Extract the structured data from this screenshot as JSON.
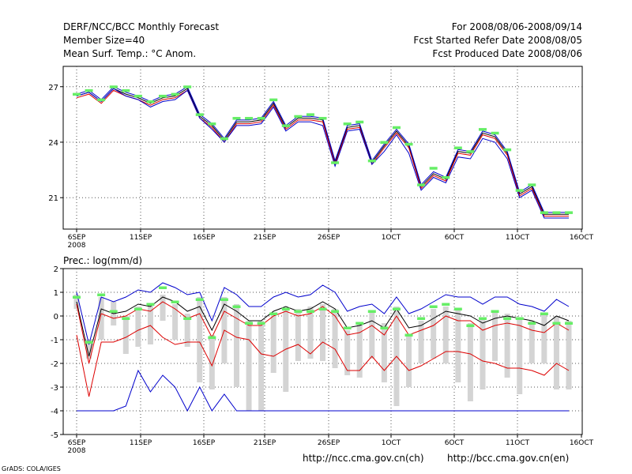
{
  "header": {
    "title": "DERF/NCC/BCC Monthly Forecast",
    "member_size": "Member Size=40",
    "variable": "Mean Surf. Temp.: °C Anom.",
    "period": "For 2008/08/06-2008/09/14",
    "refer_date": "Fcst Started Refer Date 2008/08/05",
    "produced_date": "Fcst Produced Date 2008/08/06"
  },
  "footer": {
    "link_ch": "http://ncc.cma.gov.cn(ch)",
    "link_en": "http://bcc.cma.gov.cn(en)",
    "software": "GrADS: COLA/IGES"
  },
  "colors": {
    "median": "#000000",
    "upper": "#0000cc",
    "lower": "#dd0000",
    "obs_marker": "#66ee66",
    "box": "#d4d4d4"
  },
  "chart_data": [
    {
      "type": "line",
      "title": "Mean Surf. Temp.: °C Anom.",
      "xlabel": "",
      "ylabel": "",
      "ylim": [
        19.3,
        28.1
      ],
      "yticks": [
        21,
        24,
        27
      ],
      "x_tick_labels": [
        "6SEP",
        "11SEP",
        "16SEP",
        "21SEP",
        "26SEP",
        "1OCT",
        "6OCT",
        "11OCT",
        "16OCT"
      ],
      "x_tick_year": "2008",
      "grid": true,
      "n_days": 41,
      "x_range": [
        0,
        40
      ],
      "series": [
        {
          "name": "median",
          "color": "#000000",
          "values": [
            26.5,
            26.7,
            26.2,
            26.9,
            26.6,
            26.4,
            26.1,
            26.4,
            26.5,
            26.9,
            25.4,
            24.9,
            24.1,
            25.1,
            25.1,
            25.2,
            26.1,
            24.8,
            25.3,
            25.3,
            25.2,
            22.9,
            24.8,
            24.9,
            22.9,
            23.8,
            24.6,
            23.8,
            21.6,
            22.3,
            22.0,
            23.5,
            23.4,
            24.5,
            24.3,
            23.4,
            21.2,
            21.6,
            20.1,
            20.1,
            20.1
          ]
        },
        {
          "name": "upper",
          "color": "#0000cc",
          "values": [
            26.6,
            26.8,
            26.3,
            27.0,
            26.7,
            26.5,
            26.2,
            26.5,
            26.6,
            27.0,
            25.5,
            25.0,
            24.2,
            25.2,
            25.2,
            25.3,
            26.2,
            24.9,
            25.4,
            25.4,
            25.3,
            23.0,
            24.9,
            25.0,
            23.0,
            23.9,
            24.7,
            23.9,
            21.7,
            22.4,
            22.1,
            23.6,
            23.5,
            24.6,
            24.4,
            23.5,
            21.3,
            21.7,
            20.2,
            20.2,
            20.2
          ]
        },
        {
          "name": "lower",
          "color": "#dd0000",
          "values": [
            26.4,
            26.6,
            26.1,
            26.8,
            26.5,
            26.3,
            26.0,
            26.3,
            26.4,
            26.8,
            25.3,
            24.8,
            24.0,
            25.0,
            25.0,
            25.1,
            26.0,
            24.7,
            25.2,
            25.2,
            25.1,
            22.8,
            24.7,
            24.8,
            22.8,
            23.7,
            24.5,
            23.7,
            21.5,
            22.2,
            21.9,
            23.4,
            23.3,
            24.4,
            24.2,
            23.3,
            21.1,
            21.5,
            20.0,
            20.0,
            20.0
          ]
        },
        {
          "name": "lowest",
          "color": "#0000cc",
          "values": [
            26.5,
            26.7,
            26.2,
            26.9,
            26.5,
            26.3,
            25.9,
            26.2,
            26.3,
            26.8,
            25.3,
            24.7,
            24.0,
            24.9,
            24.9,
            25.0,
            25.9,
            24.6,
            25.1,
            25.1,
            24.9,
            22.7,
            24.6,
            24.7,
            22.8,
            23.5,
            24.4,
            23.4,
            21.4,
            22.1,
            21.8,
            23.2,
            23.1,
            24.2,
            24.0,
            23.1,
            21.0,
            21.4,
            19.9,
            19.9,
            19.9
          ]
        }
      ],
      "obs_markers": [
        26.6,
        26.8,
        26.3,
        27.0,
        26.8,
        26.5,
        26.2,
        26.5,
        26.6,
        27.0,
        25.5,
        25.0,
        24.2,
        25.3,
        25.3,
        25.3,
        26.3,
        24.9,
        25.4,
        25.5,
        25.3,
        22.9,
        25.0,
        25.1,
        23.0,
        24.0,
        24.8,
        23.9,
        21.7,
        22.6,
        22.1,
        23.7,
        23.5,
        24.7,
        24.5,
        23.6,
        21.4,
        21.7,
        20.2,
        20.2,
        20.2
      ]
    },
    {
      "type": "box",
      "title": "Prec.: log(mm/d)",
      "xlabel": "",
      "ylabel": "",
      "ylim": [
        -5,
        2
      ],
      "yticks": [
        -5,
        -4,
        -3,
        -2,
        -1,
        0,
        1,
        2
      ],
      "x_tick_labels": [
        "6SEP",
        "11SEP",
        "16SEP",
        "21SEP",
        "26SEP",
        "1OCT",
        "6OCT",
        "11OCT",
        "16OCT"
      ],
      "x_tick_year": "2008",
      "grid": true,
      "n_days": 41,
      "x_range": [
        0,
        40
      ],
      "boxes": [
        [
          0.9,
          0.3
        ],
        [
          -1.0,
          -1.8
        ],
        [
          0.8,
          -1.0
        ],
        [
          0.6,
          -0.4
        ],
        [
          0.0,
          -1.6
        ],
        [
          0.4,
          -1.3
        ],
        [
          0.5,
          -1.2
        ],
        [
          0.9,
          -0.2
        ],
        [
          0.5,
          -1.0
        ],
        [
          0.1,
          -1.3
        ],
        [
          0.8,
          -2.8
        ],
        [
          -0.8,
          -3.1
        ],
        [
          0.8,
          -2.0
        ],
        [
          0.5,
          -3.0
        ],
        [
          -0.2,
          -4.0
        ],
        [
          -0.2,
          -4.0
        ],
        [
          0.1,
          -2.4
        ],
        [
          0.3,
          -3.2
        ],
        [
          0.3,
          -1.9
        ],
        [
          0.4,
          -1.8
        ],
        [
          0.5,
          -1.9
        ],
        [
          0.3,
          -2.2
        ],
        [
          -0.6,
          -2.5
        ],
        [
          -0.3,
          -2.6
        ],
        [
          0.2,
          -1.8
        ],
        [
          -0.3,
          -2.8
        ],
        [
          0.4,
          -3.8
        ],
        [
          -0.8,
          -3.0
        ],
        [
          -0.2,
          -2.0
        ],
        [
          0.3,
          -1.8
        ],
        [
          0.4,
          -2.0
        ],
        [
          0.3,
          -2.8
        ],
        [
          -0.3,
          -3.6
        ],
        [
          -0.1,
          -3.1
        ],
        [
          0.2,
          -1.9
        ],
        [
          0.1,
          -2.6
        ],
        [
          -0.1,
          -3.3
        ],
        [
          -0.2,
          -2.0
        ],
        [
          0.1,
          -2.0
        ],
        [
          0.0,
          -3.1
        ],
        [
          -0.2,
          -3.1
        ]
      ],
      "series": [
        {
          "name": "median",
          "color": "#000000",
          "values": [
            0.6,
            -1.7,
            0.3,
            0.1,
            0.2,
            0.5,
            0.4,
            0.8,
            0.6,
            0.2,
            0.4,
            -0.6,
            0.5,
            0.2,
            -0.2,
            -0.2,
            0.2,
            0.4,
            0.2,
            0.3,
            0.6,
            0.3,
            -0.5,
            -0.4,
            -0.2,
            -0.5,
            0.3,
            -0.5,
            -0.4,
            -0.1,
            0.2,
            0.1,
            0.0,
            -0.3,
            -0.1,
            0.0,
            -0.1,
            -0.2,
            -0.4,
            0.0,
            -0.2
          ]
        },
        {
          "name": "upper",
          "color": "#0000cc",
          "values": [
            1.0,
            -1.2,
            0.8,
            0.6,
            0.8,
            1.1,
            1.0,
            1.4,
            1.2,
            0.9,
            1.0,
            -0.2,
            1.2,
            0.9,
            0.4,
            0.4,
            0.8,
            1.0,
            0.8,
            0.9,
            1.3,
            1.0,
            0.2,
            0.4,
            0.5,
            0.1,
            0.8,
            0.1,
            0.3,
            0.6,
            0.9,
            0.8,
            0.8,
            0.5,
            0.8,
            0.8,
            0.5,
            0.4,
            0.2,
            0.7,
            0.4
          ]
        },
        {
          "name": "lower-mid",
          "color": "#dd0000",
          "values": [
            0.5,
            -2.0,
            0.1,
            -0.1,
            0.0,
            0.3,
            0.2,
            0.6,
            0.3,
            -0.1,
            0.1,
            -0.9,
            0.2,
            -0.1,
            -0.4,
            -0.4,
            0.0,
            0.2,
            0.0,
            0.1,
            0.4,
            0.0,
            -0.8,
            -0.7,
            -0.4,
            -0.8,
            0.0,
            -0.8,
            -0.6,
            -0.4,
            0.0,
            -0.2,
            -0.2,
            -0.6,
            -0.4,
            -0.3,
            -0.4,
            -0.6,
            -0.7,
            -0.3,
            -0.6
          ]
        },
        {
          "name": "lower",
          "color": "#dd0000",
          "values": [
            -0.8,
            -3.4,
            -1.1,
            -1.1,
            -0.9,
            -0.6,
            -0.4,
            -0.9,
            -1.2,
            -1.1,
            -1.1,
            -2.1,
            -0.6,
            -0.9,
            -1.0,
            -1.6,
            -1.7,
            -1.4,
            -1.2,
            -1.6,
            -1.1,
            -1.4,
            -2.3,
            -2.3,
            -1.7,
            -2.3,
            -1.7,
            -2.3,
            -2.1,
            -1.8,
            -1.5,
            -1.5,
            -1.6,
            -1.9,
            -2.0,
            -2.2,
            -2.2,
            -2.3,
            -2.5,
            -2.0,
            -2.3
          ]
        },
        {
          "name": "lowest",
          "color": "#0000cc",
          "values": [
            -4.0,
            -4.0,
            -4.0,
            -4.0,
            -3.8,
            -2.3,
            -3.2,
            -2.5,
            -3.0,
            -4.0,
            -3.0,
            -4.0,
            -3.3,
            -4.0,
            -4.0,
            -4.0,
            -4.0,
            -4.0,
            -4.0,
            -4.0,
            -4.0,
            -4.0,
            -4.0,
            -4.0,
            -4.0,
            -4.0,
            -4.0,
            -4.0,
            -4.0,
            -4.0,
            -4.0,
            -4.0,
            -4.0,
            -4.0,
            -4.0,
            -4.0,
            -4.0,
            -4.0,
            -4.0,
            -4.0,
            -4.0
          ]
        }
      ],
      "obs_markers": [
        0.8,
        -1.1,
        0.9,
        0.2,
        -0.1,
        0.3,
        0.5,
        1.2,
        0.6,
        -0.1,
        0.7,
        -0.9,
        0.7,
        0.4,
        -0.3,
        -0.3,
        0.1,
        0.3,
        0.2,
        0.2,
        0.3,
        0.2,
        -0.5,
        -0.3,
        0.2,
        -0.5,
        0.3,
        -0.8,
        -0.1,
        0.4,
        0.5,
        0.3,
        -0.4,
        -0.1,
        0.2,
        -0.1,
        -0.1,
        -0.3,
        0.1,
        -0.3,
        -0.3
      ]
    }
  ]
}
